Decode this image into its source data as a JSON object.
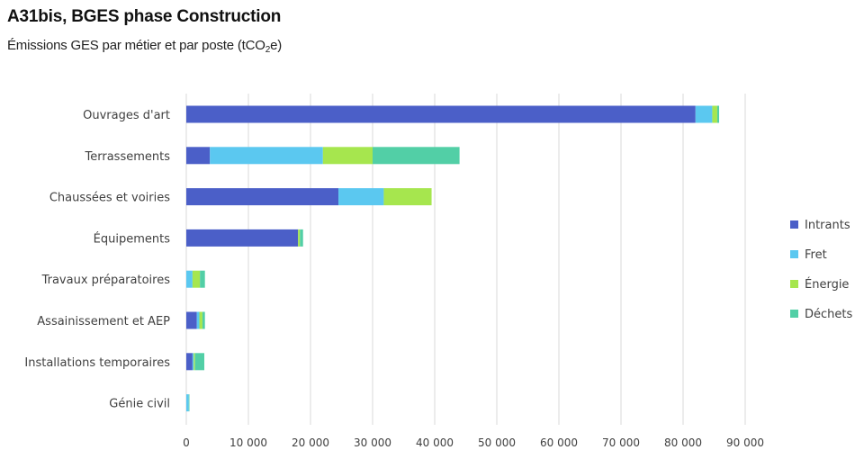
{
  "header": {
    "title": "A31bis, BGES phase Construction",
    "subtitle_main": "Émissions GES par métier et par poste (tCO",
    "subtitle_sub": "2",
    "subtitle_end": "e)"
  },
  "chart_data": {
    "type": "bar",
    "orientation": "horizontal",
    "stacked": true,
    "title": "A31bis, BGES phase Construction",
    "subtitle": "Émissions GES par métier et par poste (tCO2e)",
    "categories": [
      "Ouvrages d'art",
      "Terrassements",
      "Chaussées et voiries",
      "Équipements",
      "Travaux préparatoires",
      "Assainissement et AEP",
      "Installations temporaires",
      "Génie civil"
    ],
    "series": [
      {
        "name": "Intrants",
        "color": "#4b5fc8",
        "values": [
          82000,
          3800,
          24500,
          18000,
          0,
          1700,
          1000,
          0
        ]
      },
      {
        "name": "Fret",
        "color": "#5bc8f0",
        "values": [
          2700,
          18200,
          7300,
          0,
          1000,
          400,
          200,
          400
        ]
      },
      {
        "name": "Énergie",
        "color": "#a6e64e",
        "values": [
          800,
          8000,
          7700,
          300,
          1200,
          500,
          200,
          0
        ]
      },
      {
        "name": "Déchets",
        "color": "#52cfa6",
        "values": [
          300,
          14000,
          0,
          500,
          800,
          400,
          1500,
          100
        ]
      }
    ],
    "xlim": [
      0,
      90000
    ],
    "xticks": [
      0,
      10000,
      20000,
      30000,
      40000,
      50000,
      60000,
      70000,
      80000,
      90000
    ],
    "xtick_labels": [
      "0",
      "10 000",
      "20 000",
      "30 000",
      "40 000",
      "50 000",
      "60 000",
      "70 000",
      "80 000",
      "90 000"
    ],
    "grid": true,
    "legend_position": "right"
  }
}
